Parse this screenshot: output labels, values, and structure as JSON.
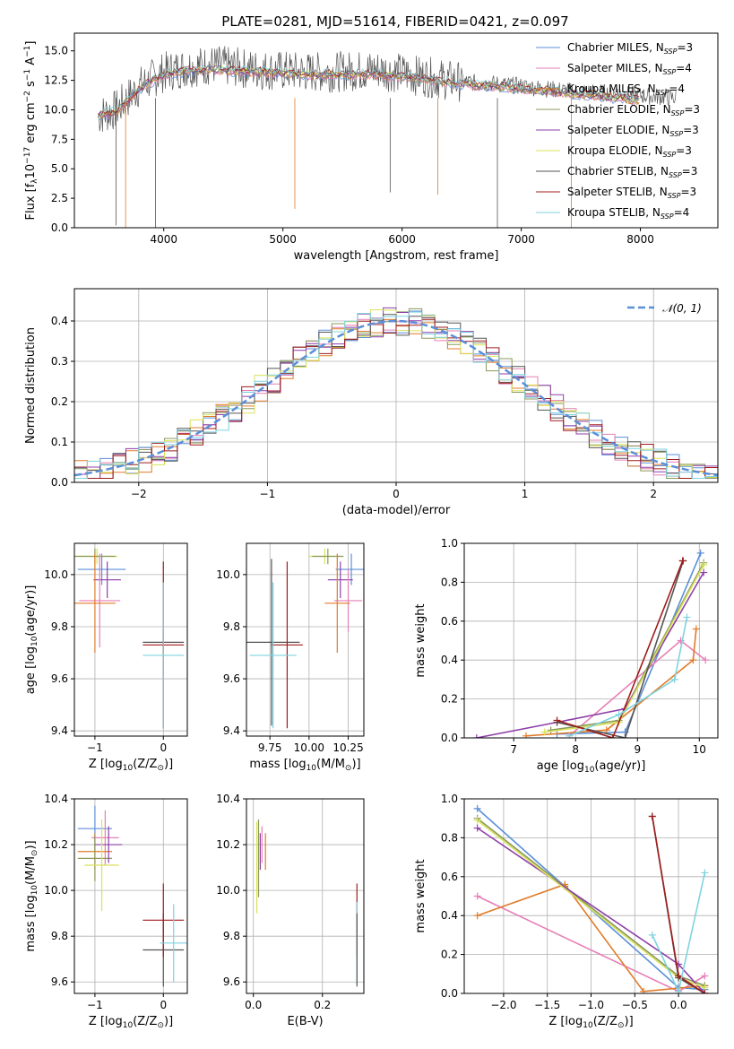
{
  "figure": {
    "title": "PLATE=0281, MJD=51614, FIBERID=0421, z=0.097"
  },
  "legend_labels": [
    {
      "pre": "Chabrier MILES, N",
      "sub": "SSP",
      "post": "=3",
      "color": "#5b8fd9"
    },
    {
      "pre": "Salpeter MILES, N",
      "sub": "SSP",
      "post": "=4",
      "color": "#e67fb6"
    },
    {
      "pre": "Kroupa MILES, N",
      "sub": "SSP",
      "post": "=4",
      "color": "#e07b2a"
    },
    {
      "pre": "Chabrier ELODIE, N",
      "sub": "SSP",
      "post": "=3",
      "color": "#8a9a5b"
    },
    {
      "pre": "Salpeter ELODIE, N",
      "sub": "SSP",
      "post": "=3",
      "color": "#8e3fa9"
    },
    {
      "pre": "Kroupa ELODIE, N",
      "sub": "SSP",
      "post": "=3",
      "color": "#d9e15a"
    },
    {
      "pre": "Chabrier STELIB, N",
      "sub": "SSP",
      "post": "=3",
      "color": "#555555"
    },
    {
      "pre": "Salpeter STELIB, N",
      "sub": "SSP",
      "post": "=3",
      "color": "#a01c1c"
    },
    {
      "pre": "Kroupa STELIB, N",
      "sub": "SSP",
      "post": "=4",
      "color": "#7fd3e0"
    }
  ],
  "chart_data": [
    {
      "id": "spectrum",
      "type": "line",
      "xlabel": "wavelength [Angstrom, rest frame]",
      "ylabel": {
        "pre": "Flux [f",
        "sub": "λ",
        "mid": "10",
        "sup1": "−17",
        "post": " erg cm",
        "sup2": "−2",
        "post2": " s",
        "sup3": "−1",
        "post3": " A",
        "sup4": "−1",
        "end": "]"
      },
      "xlim": [
        3250,
        8650
      ],
      "ylim": [
        0,
        16.5
      ],
      "xticks": [
        4000,
        5000,
        6000,
        7000,
        8000
      ],
      "yticks": [
        0.0,
        2.5,
        5.0,
        7.5,
        10.0,
        12.5,
        15.0
      ],
      "data_envelope": {
        "x": [
          3450,
          3600,
          3800,
          4000,
          4200,
          4400,
          4600,
          4800,
          5000,
          5200,
          5400,
          5600,
          5800,
          6000,
          6200,
          6400,
          6600,
          6800,
          7000,
          7200,
          7400,
          7600,
          7800,
          8000,
          8200,
          8300
        ],
        "y": [
          9.5,
          10.0,
          12.0,
          13.2,
          13.6,
          13.8,
          13.6,
          13.4,
          13.3,
          13.2,
          13.2,
          13.3,
          13.4,
          13.1,
          12.8,
          12.5,
          12.3,
          12.2,
          12.0,
          11.8,
          11.6,
          11.5,
          11.4,
          11.2,
          11.1,
          11.0
        ]
      },
      "model_line": {
        "x": [
          3450,
          3600,
          3800,
          4000,
          4200,
          4400,
          4600,
          4800,
          5000,
          5200,
          5400,
          5600,
          5800,
          6000,
          6200,
          6400,
          6600,
          6800,
          7000,
          7200,
          7400,
          7600,
          7800,
          8000
        ],
        "y": [
          9.5,
          9.8,
          11.8,
          13.0,
          13.3,
          13.4,
          13.3,
          13.2,
          13.1,
          13.0,
          13.0,
          13.0,
          13.0,
          12.8,
          12.6,
          12.3,
          12.1,
          12.0,
          11.8,
          11.6,
          11.4,
          11.2,
          11.0,
          10.8
        ]
      }
    },
    {
      "id": "residual-distribution",
      "type": "line",
      "xlabel": "(data-model)/error",
      "ylabel": "Normed distribution",
      "xlim": [
        -2.5,
        2.5
      ],
      "ylim": [
        0,
        0.48
      ],
      "xticks": [
        -2,
        -1,
        0,
        1,
        2
      ],
      "yticks": [
        0.0,
        0.1,
        0.2,
        0.3,
        0.4
      ],
      "legend": "𝒩(0, 1)",
      "normal_curve": {
        "mean": 0,
        "sigma": 1,
        "amplitude": 0.4
      }
    },
    {
      "id": "age-vs-Z",
      "type": "scatter",
      "xlabel": {
        "pre": "Z [log",
        "sub": "10",
        "post": "(Z/Z",
        "sub2": "⊙",
        "end": ")]"
      },
      "ylabel": {
        "pre": "age  [log",
        "sub": "10",
        "post": "(age/yr)]"
      },
      "xlim": [
        -1.3,
        0.35
      ],
      "ylim": [
        9.38,
        10.12
      ],
      "xticks": [
        -1,
        0
      ],
      "yticks": [
        9.4,
        9.6,
        9.8,
        10.0
      ],
      "points": [
        {
          "x": -0.9,
          "y": 10.02,
          "xerr": 0.35,
          "yerr": 0.06,
          "c": "#5b8fd9"
        },
        {
          "x": -0.97,
          "y": 10.07,
          "xerr": 0.3,
          "yerr": 0.03,
          "c": "#d9e15a"
        },
        {
          "x": -1.0,
          "y": 10.07,
          "xerr": 0.3,
          "yerr": 0.03,
          "c": "#8a9a5b"
        },
        {
          "x": -0.82,
          "y": 9.98,
          "xerr": 0.2,
          "yerr": 0.07,
          "c": "#8e3fa9"
        },
        {
          "x": -0.93,
          "y": 9.9,
          "xerr": 0.3,
          "yerr": 0.18,
          "c": "#e67fb6"
        },
        {
          "x": -1.0,
          "y": 9.89,
          "xerr": 0.3,
          "yerr": 0.19,
          "c": "#e07b2a"
        },
        {
          "x": 0.0,
          "y": 9.74,
          "xerr": 0.3,
          "yerr": 0.05,
          "c": "#555555"
        },
        {
          "x": 0.0,
          "y": 9.73,
          "xerr": 0.3,
          "yerr": 0.32,
          "c": "#a01c1c"
        },
        {
          "x": 0.0,
          "y": 9.69,
          "xerr": 0.3,
          "yerr": 0.28,
          "c": "#7fd3e0"
        }
      ]
    },
    {
      "id": "age-vs-mass",
      "type": "scatter",
      "xlabel": {
        "pre": "mass [log",
        "sub": "10",
        "post": "(M/M",
        "sub2": "⊙",
        "end": ")]"
      },
      "ylabel": "",
      "xlim": [
        9.6,
        10.35
      ],
      "ylim": [
        9.38,
        10.12
      ],
      "xticks": [
        9.75,
        10.0,
        10.25
      ],
      "xtick_labels": [
        "9.75",
        "10.00",
        "10.25"
      ],
      "yticks": [
        9.4,
        9.6,
        9.8,
        10.0
      ],
      "points": [
        {
          "x": 10.27,
          "y": 10.02,
          "xerr": 0.1,
          "yerr": 0.06,
          "c": "#5b8fd9"
        },
        {
          "x": 10.1,
          "y": 10.07,
          "xerr": 0.1,
          "yerr": 0.03,
          "c": "#d9e15a"
        },
        {
          "x": 10.12,
          "y": 10.07,
          "xerr": 0.1,
          "yerr": 0.03,
          "c": "#8a9a5b"
        },
        {
          "x": 10.2,
          "y": 9.98,
          "xerr": 0.08,
          "yerr": 0.07,
          "c": "#8e3fa9"
        },
        {
          "x": 10.25,
          "y": 9.9,
          "xerr": 0.09,
          "yerr": 0.12,
          "c": "#e67fb6"
        },
        {
          "x": 10.18,
          "y": 9.89,
          "xerr": 0.08,
          "yerr": 0.19,
          "c": "#e07b2a"
        },
        {
          "x": 9.76,
          "y": 9.74,
          "xerr": 0.18,
          "yerr": 0.32,
          "c": "#555555"
        },
        {
          "x": 9.86,
          "y": 9.73,
          "xerr": 0.1,
          "yerr": 0.32,
          "c": "#a01c1c"
        },
        {
          "x": 9.77,
          "y": 9.69,
          "xerr": 0.15,
          "yerr": 0.28,
          "c": "#7fd3e0"
        }
      ]
    },
    {
      "id": "weight-vs-age",
      "type": "line",
      "xlabel": {
        "pre": "age  [log",
        "sub": "10",
        "post": "(age/yr)]"
      },
      "ylabel": "mass weight",
      "xlim": [
        6.2,
        10.3
      ],
      "ylim": [
        0,
        1.0
      ],
      "xticks": [
        7,
        8,
        9,
        10
      ],
      "yticks": [
        0.0,
        0.2,
        0.4,
        0.6,
        0.8,
        1.0
      ],
      "series": [
        {
          "c": "#5b8fd9",
          "x": [
            7.7,
            8.8,
            10.02
          ],
          "y": [
            0.02,
            0.03,
            0.95
          ]
        },
        {
          "c": "#e67fb6",
          "x": [
            7.9,
            9.7,
            10.1
          ],
          "y": [
            0.01,
            0.5,
            0.4
          ]
        },
        {
          "c": "#e07b2a",
          "x": [
            7.2,
            8.5,
            9.9,
            9.95
          ],
          "y": [
            0.01,
            0.04,
            0.4,
            0.56
          ]
        },
        {
          "c": "#8a9a5b",
          "x": [
            7.6,
            8.7,
            10.07
          ],
          "y": [
            0.04,
            0.09,
            0.9
          ]
        },
        {
          "c": "#8e3fa9",
          "x": [
            6.4,
            7.7,
            8.8,
            10.07
          ],
          "y": [
            0.0,
            0.08,
            0.15,
            0.85
          ]
        },
        {
          "c": "#d9e15a",
          "x": [
            7.5,
            8.7,
            10.07
          ],
          "y": [
            0.03,
            0.08,
            0.89
          ]
        },
        {
          "c": "#555555",
          "x": [
            7.7,
            8.8,
            9.74
          ],
          "y": [
            0.08,
            0.0,
            0.91
          ]
        },
        {
          "c": "#a01c1c",
          "x": [
            7.7,
            8.6,
            9.73
          ],
          "y": [
            0.09,
            0.0,
            0.91
          ]
        },
        {
          "c": "#7fd3e0",
          "x": [
            7.9,
            8.7,
            9.6,
            9.8
          ],
          "y": [
            0.01,
            0.12,
            0.3,
            0.62
          ]
        }
      ]
    },
    {
      "id": "mass-vs-Z",
      "type": "scatter",
      "xlabel": {
        "pre": "Z [log",
        "sub": "10",
        "post": "(Z/Z",
        "sub2": "⊙",
        "end": ")]"
      },
      "ylabel": {
        "pre": "mass [log",
        "sub": "10",
        "post": "(M/M",
        "sub2": "⊙",
        "end": ")]"
      },
      "xlim": [
        -1.3,
        0.35
      ],
      "ylim": [
        9.55,
        10.4
      ],
      "xticks": [
        -1,
        0
      ],
      "yticks": [
        9.6,
        9.8,
        10.0,
        10.2,
        10.4
      ],
      "points": [
        {
          "x": -1.0,
          "y": 10.27,
          "xerr": 0.25,
          "yerr": 0.1,
          "c": "#5b8fd9"
        },
        {
          "x": -0.85,
          "y": 10.23,
          "xerr": 0.2,
          "yerr": 0.12,
          "c": "#e67fb6"
        },
        {
          "x": -1.0,
          "y": 10.17,
          "xerr": 0.25,
          "yerr": 0.08,
          "c": "#e07b2a"
        },
        {
          "x": -1.0,
          "y": 10.14,
          "xerr": 0.25,
          "yerr": 0.1,
          "c": "#8a9a5b"
        },
        {
          "x": -0.8,
          "y": 10.2,
          "xerr": 0.2,
          "yerr": 0.08,
          "c": "#8e3fa9"
        },
        {
          "x": -0.9,
          "y": 10.11,
          "xerr": 0.25,
          "yerr": 0.2,
          "c": "#d9e15a"
        },
        {
          "x": -0.0,
          "y": 9.74,
          "xerr": 0.3,
          "yerr": 0.16,
          "c": "#555555"
        },
        {
          "x": -0.0,
          "y": 9.87,
          "xerr": 0.3,
          "yerr": 0.16,
          "c": "#a01c1c"
        },
        {
          "x": 0.15,
          "y": 9.77,
          "xerr": 0.2,
          "yerr": 0.17,
          "c": "#7fd3e0"
        }
      ]
    },
    {
      "id": "mass-vs-EBV",
      "type": "scatter",
      "xlabel": "E(B-V)",
      "ylabel": "",
      "xlim": [
        -0.02,
        0.32
      ],
      "ylim": [
        9.55,
        10.4
      ],
      "xticks": [
        0.0,
        0.2
      ],
      "yticks": [
        9.6,
        9.8,
        10.0,
        10.2,
        10.4
      ],
      "points": [
        {
          "x": 0.02,
          "y": 10.17,
          "xerr": 0,
          "yerr": 0.08,
          "c": "#8e3fa9"
        },
        {
          "x": 0.025,
          "y": 10.2,
          "xerr": 0,
          "yerr": 0.08,
          "c": "#e67fb6"
        },
        {
          "x": 0.035,
          "y": 10.17,
          "xerr": 0,
          "yerr": 0.08,
          "c": "#e07b2a"
        },
        {
          "x": 0.01,
          "y": 10.1,
          "xerr": 0,
          "yerr": 0.2,
          "c": "#d9e15a"
        },
        {
          "x": 0.015,
          "y": 10.14,
          "xerr": 0,
          "yerr": 0.17,
          "c": "#8a9a5b"
        },
        {
          "x": 0.3,
          "y": 9.87,
          "xerr": 0,
          "yerr": 0.16,
          "c": "#a01c1c"
        },
        {
          "x": 0.3,
          "y": 9.77,
          "xerr": 0,
          "yerr": 0.18,
          "c": "#7fd3e0"
        },
        {
          "x": 0.3,
          "y": 9.74,
          "xerr": 0,
          "yerr": 0.16,
          "c": "#555555"
        }
      ]
    },
    {
      "id": "weight-vs-Z",
      "type": "line",
      "xlabel": {
        "pre": "Z [log",
        "sub": "10",
        "post": "(Z/Z",
        "sub2": "⊙",
        "end": ")]"
      },
      "ylabel": "mass weight",
      "xlim": [
        -2.45,
        0.45
      ],
      "ylim": [
        0,
        1.0
      ],
      "xticks": [
        -2.0,
        -1.5,
        -1.0,
        -0.5,
        0.0
      ],
      "yticks": [
        0.0,
        0.2,
        0.4,
        0.6,
        0.8,
        1.0
      ],
      "series": [
        {
          "c": "#5b8fd9",
          "x": [
            -2.3,
            -1.3,
            0.0,
            0.3
          ],
          "y": [
            0.95,
            0.55,
            0.03,
            0.02
          ]
        },
        {
          "c": "#e67fb6",
          "x": [
            -2.3,
            0.0,
            0.3
          ],
          "y": [
            0.5,
            0.01,
            0.09
          ]
        },
        {
          "c": "#e07b2a",
          "x": [
            -2.3,
            -1.3,
            -0.4,
            0.3
          ],
          "y": [
            0.4,
            0.56,
            0.01,
            0.04
          ]
        },
        {
          "c": "#8a9a5b",
          "x": [
            -2.3,
            0.0,
            0.3
          ],
          "y": [
            0.9,
            0.09,
            0.04
          ]
        },
        {
          "c": "#8e3fa9",
          "x": [
            -2.3,
            0.0,
            0.3
          ],
          "y": [
            0.85,
            0.15,
            0.0
          ]
        },
        {
          "c": "#d9e15a",
          "x": [
            -2.3,
            0.0,
            0.3
          ],
          "y": [
            0.89,
            0.08,
            0.03
          ]
        },
        {
          "c": "#555555",
          "x": [
            -0.3,
            0.0,
            0.3
          ],
          "y": [
            0.91,
            0.08,
            0.0
          ]
        },
        {
          "c": "#a01c1c",
          "x": [
            -0.3,
            0.0,
            0.3
          ],
          "y": [
            0.91,
            0.09,
            0.0
          ]
        },
        {
          "c": "#7fd3e0",
          "x": [
            -0.3,
            0.0,
            0.3
          ],
          "y": [
            0.3,
            0.01,
            0.62
          ]
        }
      ]
    }
  ]
}
